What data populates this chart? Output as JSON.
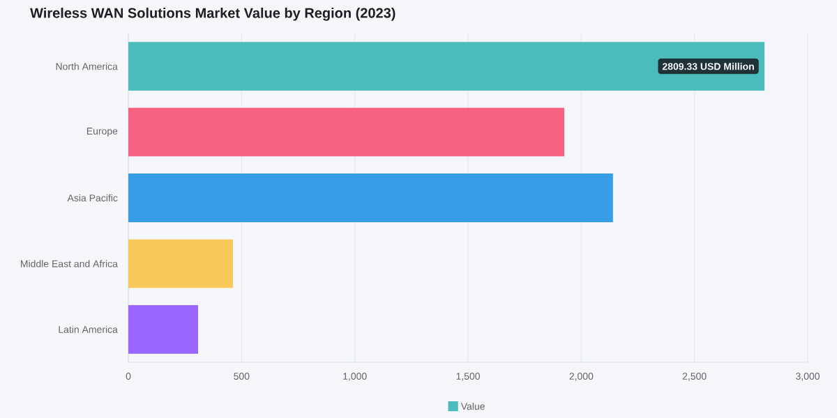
{
  "chart_data": {
    "type": "bar",
    "orientation": "horizontal",
    "title": "Wireless WAN Solutions Market Value by Region (2023)",
    "categories": [
      "North America",
      "Europe",
      "Asia Pacific",
      "Middle East and Africa",
      "Latin America"
    ],
    "series": [
      {
        "name": "Value",
        "colors": [
          "#4bbbbb",
          "#f5617f",
          "#379de6",
          "#f9c85a",
          "#9966ff"
        ],
        "values": [
          2809.33,
          1925,
          2140,
          462,
          308
        ]
      }
    ],
    "value_labels": [
      "2809.33 USD Million",
      null,
      null,
      null,
      null
    ],
    "xlim": [
      0,
      3000
    ],
    "xticks": [
      {
        "value": 0,
        "label": "0"
      },
      {
        "value": 500,
        "label": "500"
      },
      {
        "value": 1000,
        "label": "1,000"
      },
      {
        "value": 1500,
        "label": "1,500"
      },
      {
        "value": 2000,
        "label": "2,000"
      },
      {
        "value": 2500,
        "label": "2,500"
      },
      {
        "value": 3000,
        "label": "3,000"
      }
    ],
    "grid": "x",
    "legend": "bottom"
  }
}
